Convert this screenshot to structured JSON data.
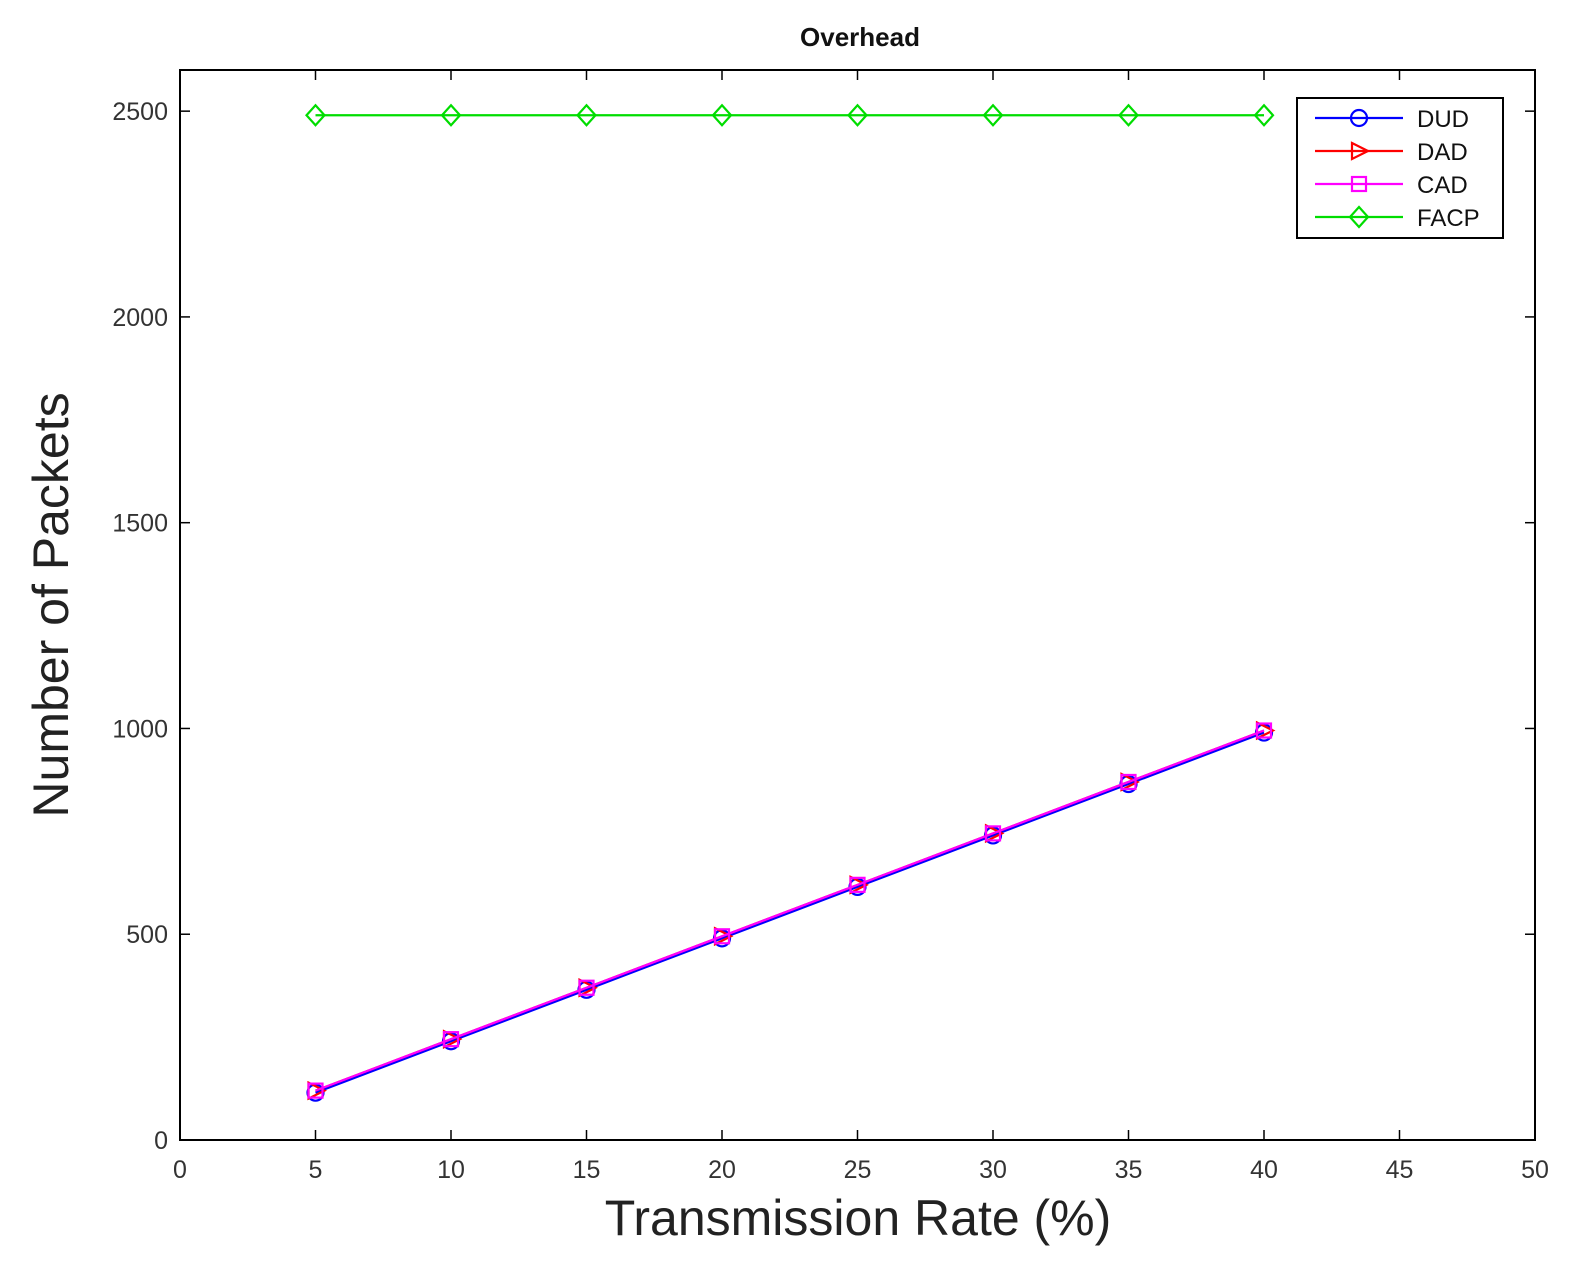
{
  "chart_data": {
    "type": "line",
    "title": "Overhead",
    "xlabel": "Transmission Rate (%)",
    "ylabel": "Number of Packets",
    "xlim": [
      0,
      50
    ],
    "ylim": [
      0,
      2600
    ],
    "xticks": [
      0,
      5,
      10,
      15,
      20,
      25,
      30,
      35,
      40,
      45,
      50
    ],
    "yticks": [
      0,
      500,
      1000,
      1500,
      2000,
      2500
    ],
    "grid": false,
    "legend_position": "top-right",
    "x": [
      5,
      10,
      15,
      20,
      25,
      30,
      35,
      40
    ],
    "series": [
      {
        "name": "DUD",
        "color": "#0000ff",
        "marker": "circle",
        "values": [
          115,
          240,
          365,
          490,
          615,
          740,
          865,
          990
        ]
      },
      {
        "name": "DAD",
        "color": "#ff0000",
        "marker": "triangle-right",
        "values": [
          120,
          245,
          370,
          495,
          620,
          745,
          870,
          995
        ]
      },
      {
        "name": "CAD",
        "color": "#ff00ff",
        "marker": "square",
        "values": [
          120,
          245,
          370,
          495,
          620,
          745,
          870,
          995
        ]
      },
      {
        "name": "FACP",
        "color": "#00dd00",
        "marker": "diamond",
        "values": [
          2490,
          2490,
          2490,
          2490,
          2490,
          2490,
          2490,
          2490
        ]
      }
    ]
  }
}
